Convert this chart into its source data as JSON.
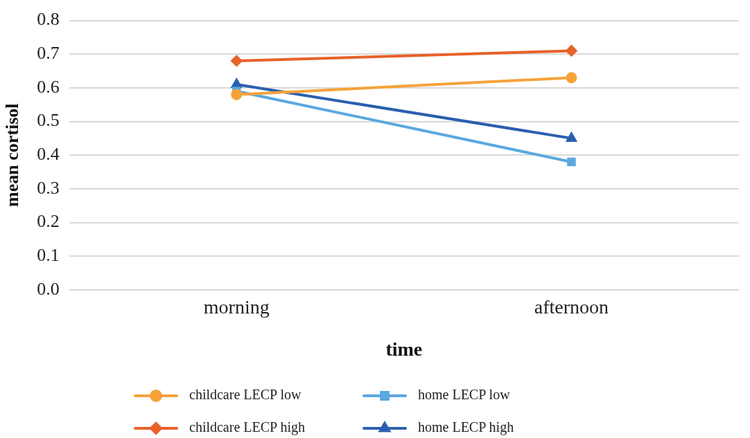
{
  "chart_data": {
    "type": "line",
    "xlabel": "time",
    "ylabel": "mean cortisol",
    "categories": [
      "morning",
      "afternoon"
    ],
    "series": [
      {
        "name": "childcare LECP low",
        "color": "#f6a23a",
        "marker": "circle",
        "values": [
          0.58,
          0.63
        ]
      },
      {
        "name": "childcare LECP high",
        "color": "#e8622a",
        "marker": "diamond",
        "values": [
          0.68,
          0.71
        ]
      },
      {
        "name": "home LECP low",
        "color": "#5ba8e0",
        "marker": "square",
        "values": [
          0.59,
          0.38
        ]
      },
      {
        "name": "home LECP high",
        "color": "#2a5fb0",
        "marker": "triangle",
        "values": [
          0.61,
          0.45
        ]
      }
    ],
    "ylim": [
      0,
      0.8
    ],
    "yticks": [
      {
        "value": 0,
        "label": "0.0"
      },
      0.1,
      0.2,
      0.3,
      0.4,
      0.5,
      0.6,
      0.7,
      0.8
    ],
    "grid": "y",
    "legend": "bottom"
  }
}
